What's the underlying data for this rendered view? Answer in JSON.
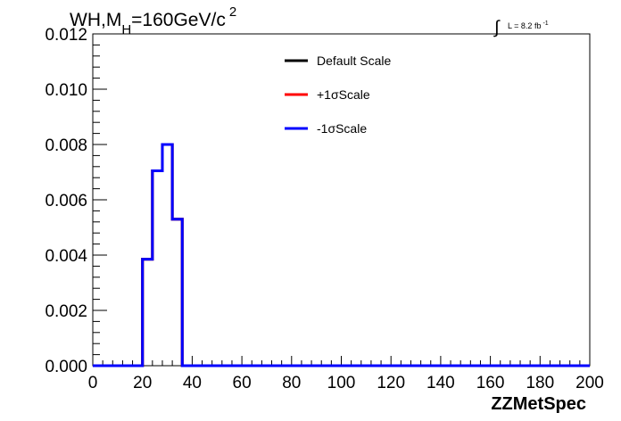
{
  "chart_data": {
    "type": "line",
    "style": "histogram-step",
    "title_main": "WH,M",
    "title_sub": "H",
    "title_rest": "=160GeV/c",
    "title_sup": "2",
    "lumi_main": "L = 8.2 fb",
    "lumi_sup": "-1",
    "lumi_symbol": "∫",
    "xlabel": "ZZMetSpec",
    "ylabel": "",
    "xlim": [
      0,
      200
    ],
    "ylim": [
      0,
      0.012
    ],
    "x_ticks": [
      "0",
      "20",
      "40",
      "60",
      "80",
      "100",
      "120",
      "140",
      "160",
      "180",
      "200"
    ],
    "y_ticks": [
      "0.000",
      "0.002",
      "0.004",
      "0.006",
      "0.008",
      "0.010",
      "0.012"
    ],
    "bin_edges": [
      0,
      20,
      24,
      28,
      32,
      36,
      40,
      200
    ],
    "series": [
      {
        "name": "Default Scale",
        "color": "#000000",
        "values": [
          0,
          0.00385,
          0.00705,
          0.008,
          0.0053,
          0,
          0
        ]
      },
      {
        "name": "+1σScale",
        "color": "#ff0000",
        "values": [
          0,
          0.00385,
          0.00705,
          0.008,
          0.0053,
          0,
          0
        ]
      },
      {
        "name": "-1σScale",
        "color": "#0000ff",
        "values": [
          0,
          0.00385,
          0.00705,
          0.008,
          0.0053,
          0,
          0
        ]
      }
    ],
    "legend_position": "top-center",
    "grid": false
  }
}
